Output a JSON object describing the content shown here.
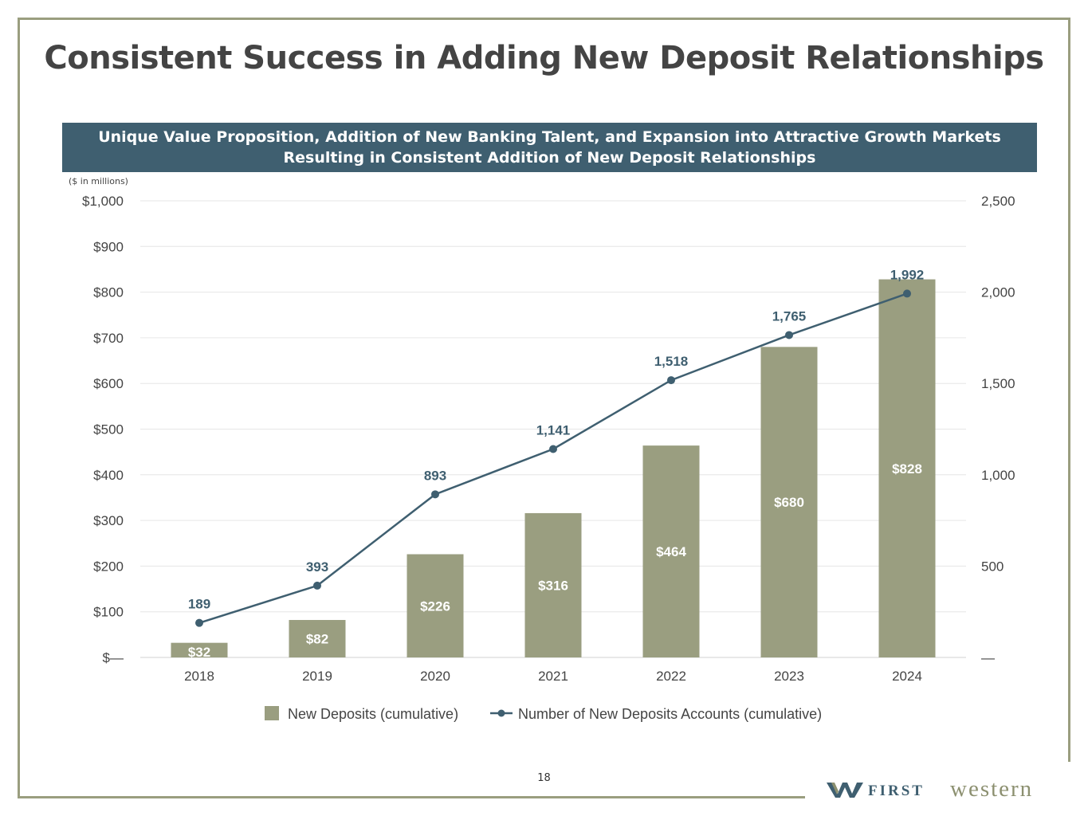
{
  "title": "Consistent Success in Adding New Deposit Relationships",
  "banner": "Unique Value Proposition, Addition of New Banking Talent, and Expansion into Attractive Growth Markets Resulting in Consistent Addition of New Deposit Relationships",
  "units_note": "($ in millions)",
  "page_number": "18",
  "logo": {
    "first": "FIRST",
    "western": "western"
  },
  "colors": {
    "bar": "#9a9e80",
    "line": "#3f5f70",
    "frame": "#9a9e7f",
    "banner": "#3f5f70",
    "text": "#444444"
  },
  "chart_data": {
    "type": "bar",
    "categories": [
      "2018",
      "2019",
      "2020",
      "2021",
      "2022",
      "2023",
      "2024"
    ],
    "series": [
      {
        "name": "New Deposits (cumulative)",
        "type": "bar",
        "axis": "left",
        "values": [
          32,
          82,
          226,
          316,
          464,
          680,
          828
        ],
        "labels": [
          "$32",
          "$82",
          "$226",
          "$316",
          "$464",
          "$680",
          "$828"
        ]
      },
      {
        "name": "Number of New Deposits Accounts (cumulative)",
        "type": "line",
        "axis": "right",
        "values": [
          189,
          393,
          893,
          1141,
          1518,
          1765,
          1992
        ],
        "labels": [
          "189",
          "393",
          "893",
          "1,141",
          "1,518",
          "1,765",
          "1,992"
        ]
      }
    ],
    "y_left": {
      "ylim": [
        0,
        1000
      ],
      "ticks": [
        "$—",
        "$100",
        "$200",
        "$300",
        "$400",
        "$500",
        "$600",
        "$700",
        "$800",
        "$900",
        "$1,000"
      ]
    },
    "y_right": {
      "ylim": [
        0,
        2500
      ],
      "ticks": [
        "—",
        "500",
        "1,000",
        "1,500",
        "2,000",
        "2,500"
      ]
    },
    "grid": true,
    "legend_position": "bottom"
  }
}
